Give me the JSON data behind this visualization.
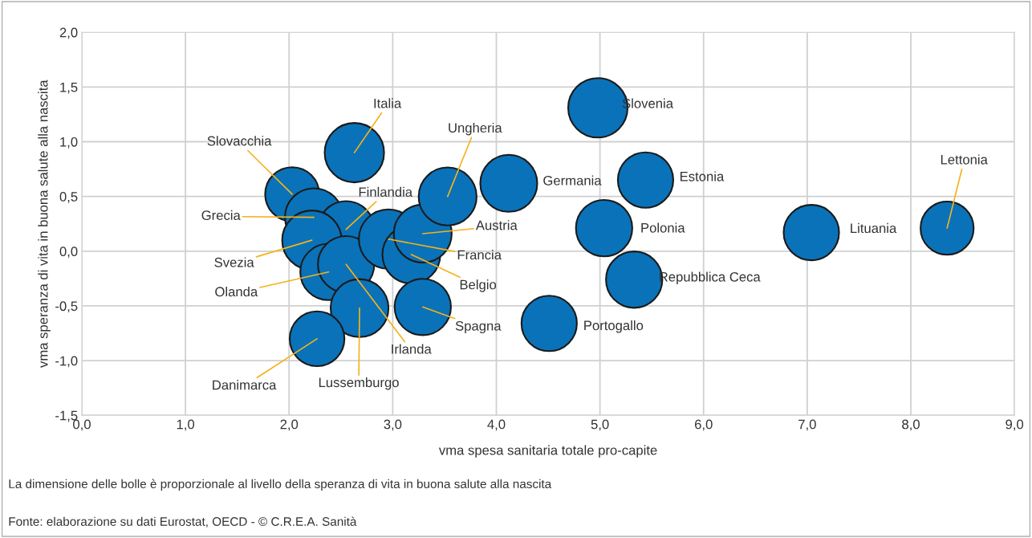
{
  "chart_data": {
    "type": "bubble",
    "xlabel": "vma spesa sanitaria totale pro-capite",
    "ylabel": "vma speranza di vita in buona salute alla nascita",
    "x": [
      2.63,
      2.03,
      2.24,
      2.55,
      2.22,
      2.38,
      2.55,
      2.68,
      2.27,
      2.96,
      3.18,
      3.29,
      3.53,
      3.29,
      4.12,
      4.98,
      5.44,
      5.04,
      5.33,
      4.51,
      7.04,
      8.35
    ],
    "series": [
      {
        "color": "#0a72b8",
        "values": [
          0.9,
          0.52,
          0.31,
          0.2,
          0.1,
          -0.19,
          -0.12,
          -0.52,
          -0.8,
          0.11,
          -0.03,
          0.16,
          0.5,
          -0.51,
          0.62,
          1.31,
          0.65,
          0.21,
          -0.26,
          -0.66,
          0.17,
          0.21
        ],
        "sizes": [
          1.0,
          0.83,
          0.95,
          0.9,
          1.0,
          0.9,
          0.9,
          0.95,
          0.85,
          1.0,
          0.95,
          0.95,
          0.95,
          0.9,
          0.92,
          1.0,
          0.87,
          0.9,
          0.9,
          0.87,
          0.87,
          0.8
        ]
      }
    ],
    "xlim": [
      0,
      9
    ],
    "xticks": [
      {
        "value": 0,
        "label": "0,0"
      },
      {
        "value": 1,
        "label": "1,0"
      },
      {
        "value": 2,
        "label": "2,0"
      },
      {
        "value": 3,
        "label": "3,0"
      },
      {
        "value": 4,
        "label": "4,0"
      },
      {
        "value": 5,
        "label": "5,0"
      },
      {
        "value": 6,
        "label": "6,0"
      },
      {
        "value": 7,
        "label": "7,0"
      },
      {
        "value": 8,
        "label": "8,0"
      },
      {
        "value": 9,
        "label": "9,0"
      }
    ],
    "ylim": [
      -1.5,
      2.0
    ],
    "yticks": [
      {
        "value": -1.5,
        "label": "-1,5"
      },
      {
        "value": -1.0,
        "label": "-1,0"
      },
      {
        "value": -0.5,
        "label": "-0,5"
      },
      {
        "value": 0.0,
        "label": "0,0"
      },
      {
        "value": 0.5,
        "label": "0,5"
      },
      {
        "value": 1.0,
        "label": "1,0"
      },
      {
        "value": 1.5,
        "label": "1,5"
      },
      {
        "value": 2.0,
        "label": "2,0"
      }
    ],
    "grid": true,
    "annotations": [
      {
        "text": "Italia",
        "x": 2.63,
        "y": 0.9
      },
      {
        "text": "Slovacchia",
        "x": 2.03,
        "y": 0.52
      },
      {
        "text": "Grecia",
        "x": 2.24,
        "y": 0.31
      },
      {
        "text": "Finlandia",
        "x": 2.55,
        "y": 0.2
      },
      {
        "text": "Svezia",
        "x": 2.22,
        "y": 0.1
      },
      {
        "text": "Olanda",
        "x": 2.38,
        "y": -0.19
      },
      {
        "text": "Irlanda",
        "x": 2.55,
        "y": -0.12
      },
      {
        "text": "Lussemburgo",
        "x": 2.68,
        "y": -0.52
      },
      {
        "text": "Danimarca",
        "x": 2.27,
        "y": -0.8
      },
      {
        "text": "Francia",
        "x": 2.96,
        "y": 0.11
      },
      {
        "text": "Belgio",
        "x": 3.18,
        "y": -0.03
      },
      {
        "text": "Austria",
        "x": 3.29,
        "y": 0.16
      },
      {
        "text": "Ungheria",
        "x": 3.53,
        "y": 0.5
      },
      {
        "text": "Spagna",
        "x": 3.29,
        "y": -0.51
      },
      {
        "text": "Germania",
        "x": 4.12,
        "y": 0.62
      },
      {
        "text": "Slovenia",
        "x": 4.98,
        "y": 1.31
      },
      {
        "text": "Estonia",
        "x": 5.44,
        "y": 0.65
      },
      {
        "text": "Polonia",
        "x": 5.04,
        "y": 0.21
      },
      {
        "text": "Repubblica Ceca",
        "x": 5.33,
        "y": -0.26
      },
      {
        "text": "Portogallo",
        "x": 4.51,
        "y": -0.66
      },
      {
        "text": "Lituania",
        "x": 7.04,
        "y": 0.17
      },
      {
        "text": "Lettonia",
        "x": 8.35,
        "y": 0.21
      },
      "La dimensione delle bolle è proporzionale al livello della speranza di vita in buona salute alla nascita",
      "Fonte: elaborazione su dati Eurostat, OECD - © C.R.E.A. Sanità"
    ]
  }
}
